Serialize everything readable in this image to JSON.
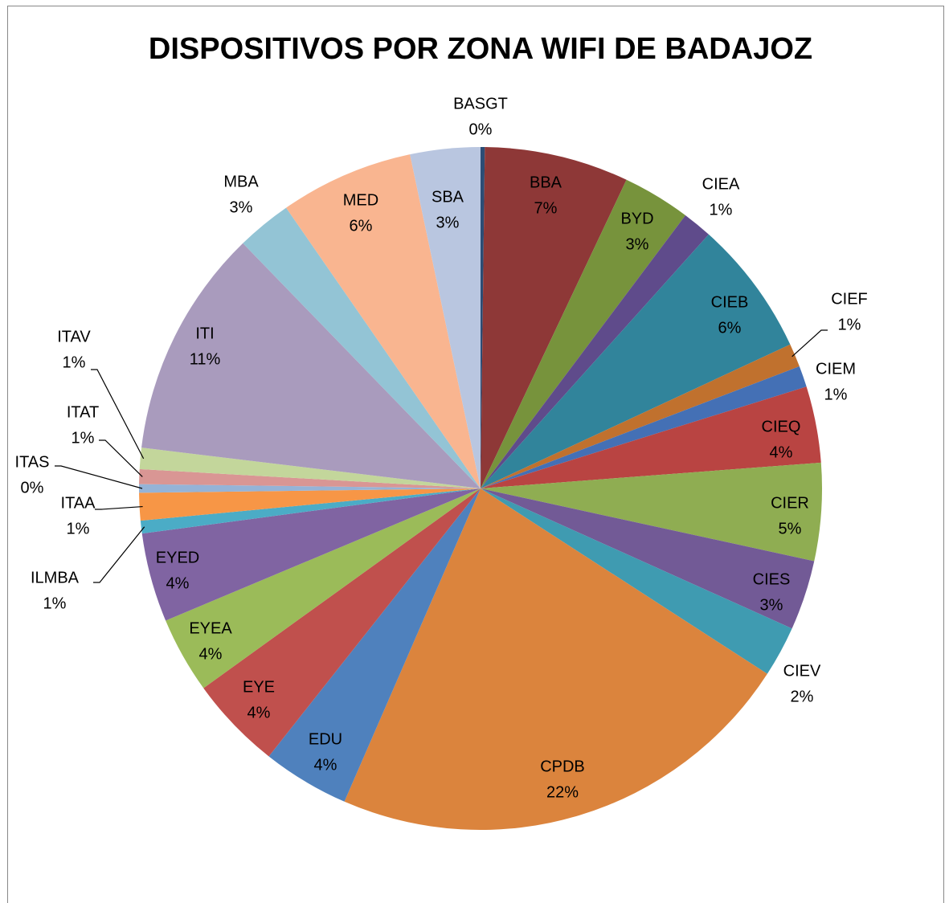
{
  "chart_data": {
    "type": "pie",
    "title": "DISPOSITIVOS POR ZONA WIFI DE BADAJOZ",
    "categories": [
      "BASGT",
      "BBA",
      "BYD",
      "CIEA",
      "CIEB",
      "CIEF",
      "CIEM",
      "CIEQ",
      "CIER",
      "CIES",
      "CIEV",
      "CPDB",
      "EDU",
      "EYE",
      "EYEA",
      "EYED",
      "ILMBA",
      "ITAA",
      "ITAS",
      "ITAT",
      "ITAV",
      "ITI",
      "MBA",
      "MED",
      "SBA"
    ],
    "values": [
      0.2,
      6.8,
      3.2,
      1.4,
      6.4,
      1.1,
      1.0,
      3.6,
      4.6,
      3.3,
      2.4,
      22.3,
      4.1,
      4.4,
      3.6,
      4.2,
      0.6,
      1.3,
      0.4,
      0.7,
      1.0,
      10.8,
      2.6,
      6.3,
      3.3
    ],
    "value_labels": [
      "0%",
      "7%",
      "3%",
      "1%",
      "6%",
      "1%",
      "1%",
      "4%",
      "5%",
      "3%",
      "2%",
      "22%",
      "4%",
      "4%",
      "4%",
      "4%",
      "1%",
      "1%",
      "0%",
      "1%",
      "1%",
      "11%",
      "3%",
      "6%",
      "3%"
    ],
    "colors": [
      "#2c4d75",
      "#8e3837",
      "#77933c",
      "#5f4b8b",
      "#31849b",
      "#c0712e",
      "#4470b5",
      "#b94442",
      "#8fad52",
      "#725a96",
      "#3f9bb1",
      "#db843d",
      "#4f81bd",
      "#c0504d",
      "#9bbb59",
      "#8064a2",
      "#4bacc6",
      "#f79646",
      "#95b3d7",
      "#d99694",
      "#c3d69b",
      "#a99bbd",
      "#93c4d5",
      "#f9b590",
      "#b9c6e0"
    ]
  }
}
